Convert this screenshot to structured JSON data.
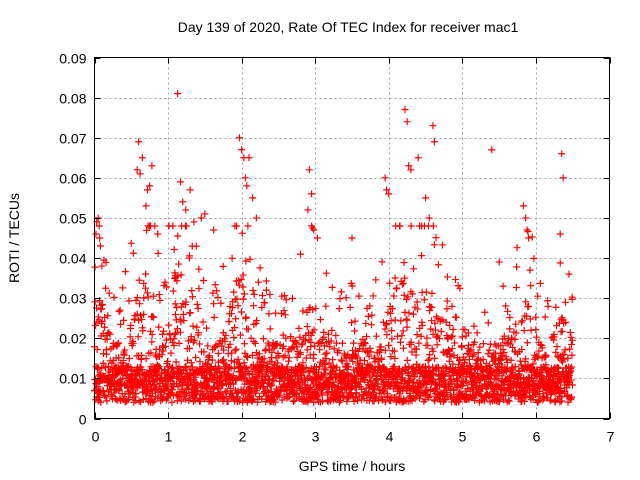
{
  "chart_data": {
    "type": "scatter",
    "title": "Day 139 of 2020, Rate Of TEC Index for receiver mac1",
    "xlabel": "GPS time / hours",
    "ylabel": "ROTI / TECUs",
    "xlim": [
      0,
      7
    ],
    "ylim": [
      0,
      0.09
    ],
    "x_ticks": [
      0,
      1,
      2,
      3,
      4,
      5,
      6,
      7
    ],
    "x_tick_labels": [
      "0",
      "1",
      "2",
      "3",
      "4",
      "5",
      "6",
      "7"
    ],
    "y_ticks": [
      0,
      0.01,
      0.02,
      0.03,
      0.04,
      0.05,
      0.06,
      0.07,
      0.08,
      0.09
    ],
    "y_tick_labels": [
      "0",
      "0.01",
      "0.02",
      "0.03",
      "0.04",
      "0.05",
      "0.06",
      "0.07",
      "0.08",
      "0.09"
    ],
    "grid": true,
    "marker": "plus",
    "series": [
      {
        "name": "ROTI",
        "color": "#ff0000",
        "x_range": [
          0,
          6.5
        ],
        "note_bulk": "dense band of points, mostly between 0.003 and 0.025 TECUs",
        "highlights": [
          [
            0.02,
            0.046
          ],
          [
            0.03,
            0.049
          ],
          [
            0.05,
            0.05
          ],
          [
            0.07,
            0.045
          ],
          [
            0.08,
            0.043
          ],
          [
            0.1,
            0.038
          ],
          [
            0.58,
            0.062
          ],
          [
            0.6,
            0.069
          ],
          [
            0.62,
            0.061
          ],
          [
            0.65,
            0.065
          ],
          [
            0.7,
            0.053
          ],
          [
            0.72,
            0.057
          ],
          [
            0.75,
            0.058
          ],
          [
            0.78,
            0.063
          ],
          [
            0.82,
            0.048
          ],
          [
            0.86,
            0.046
          ],
          [
            1.13,
            0.081
          ],
          [
            1.17,
            0.059
          ],
          [
            1.2,
            0.054
          ],
          [
            1.24,
            0.052
          ],
          [
            1.3,
            0.057
          ],
          [
            1.35,
            0.049
          ],
          [
            1.45,
            0.05
          ],
          [
            1.5,
            0.051
          ],
          [
            1.62,
            0.047
          ],
          [
            1.97,
            0.07
          ],
          [
            2.0,
            0.067
          ],
          [
            2.03,
            0.065
          ],
          [
            2.05,
            0.06
          ],
          [
            2.07,
            0.058
          ],
          [
            2.1,
            0.065
          ],
          [
            2.15,
            0.055
          ],
          [
            2.2,
            0.05
          ],
          [
            2.92,
            0.062
          ],
          [
            2.95,
            0.056
          ],
          [
            2.9,
            0.052
          ],
          [
            2.98,
            0.047
          ],
          [
            3.03,
            0.045
          ],
          [
            3.5,
            0.045
          ],
          [
            3.95,
            0.06
          ],
          [
            3.97,
            0.057
          ],
          [
            4.0,
            0.056
          ],
          [
            4.22,
            0.077
          ],
          [
            4.25,
            0.074
          ],
          [
            4.27,
            0.063
          ],
          [
            4.3,
            0.062
          ],
          [
            4.4,
            0.065
          ],
          [
            4.5,
            0.055
          ],
          [
            4.6,
            0.073
          ],
          [
            4.62,
            0.069
          ],
          [
            4.55,
            0.05
          ],
          [
            5.4,
            0.067
          ],
          [
            5.5,
            0.039
          ],
          [
            5.83,
            0.053
          ],
          [
            5.86,
            0.05
          ],
          [
            5.88,
            0.047
          ],
          [
            5.9,
            0.045
          ],
          [
            5.92,
            0.037
          ],
          [
            6.35,
            0.066
          ],
          [
            6.37,
            0.06
          ],
          [
            6.33,
            0.046
          ],
          [
            6.45,
            0.036
          ]
        ]
      }
    ]
  }
}
